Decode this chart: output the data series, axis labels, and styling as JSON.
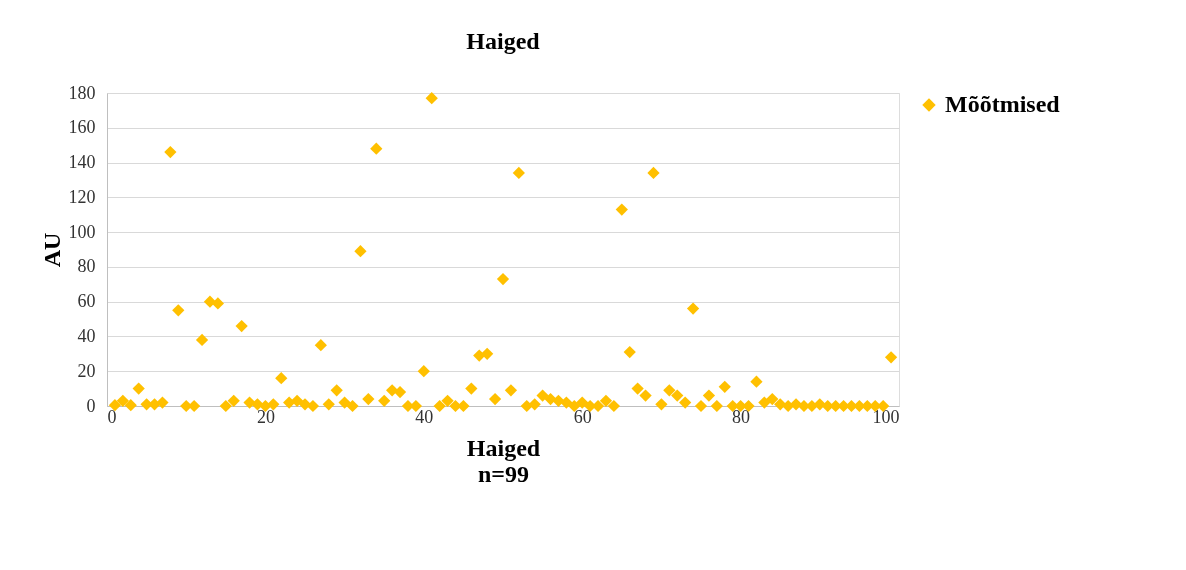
{
  "chart_data": {
    "type": "scatter",
    "title": "Haiged",
    "xlabel": "Haiged\nn=99",
    "ylabel": "AU",
    "x": [
      1,
      2,
      3,
      4,
      5,
      6,
      7,
      8,
      9,
      10,
      11,
      12,
      13,
      14,
      15,
      16,
      17,
      18,
      19,
      20,
      21,
      22,
      23,
      24,
      25,
      26,
      27,
      28,
      29,
      30,
      31,
      32,
      33,
      34,
      35,
      36,
      37,
      38,
      39,
      40,
      41,
      42,
      43,
      44,
      45,
      46,
      47,
      48,
      49,
      50,
      51,
      52,
      53,
      54,
      55,
      56,
      57,
      58,
      59,
      60,
      61,
      62,
      63,
      64,
      65,
      66,
      67,
      68,
      69,
      70,
      71,
      72,
      73,
      74,
      75,
      76,
      77,
      78,
      79,
      80,
      81,
      82,
      83,
      84,
      85,
      86,
      87,
      88,
      89,
      90,
      91,
      92,
      93,
      94,
      95,
      96,
      97,
      98,
      99
    ],
    "series": [
      {
        "name": "Mõõtmised",
        "color": "#ffc000",
        "values": [
          0.5,
          3,
          0.5,
          10,
          1,
          1,
          2,
          146,
          55,
          0,
          0,
          38,
          60,
          59,
          0,
          3,
          46,
          2,
          1,
          0,
          1,
          16,
          2,
          3,
          1,
          0,
          35,
          1,
          9,
          2,
          0,
          89,
          4,
          148,
          3,
          9,
          8,
          0,
          0,
          20,
          177,
          0,
          3,
          0,
          0,
          10,
          29,
          30,
          4,
          73,
          9,
          134,
          0,
          1,
          6,
          4,
          3,
          2,
          0,
          2,
          0,
          0,
          3,
          0,
          113,
          31,
          10,
          6,
          134,
          1,
          9,
          6,
          2,
          56,
          0,
          6,
          0,
          11,
          0,
          0,
          0,
          14,
          2,
          4,
          1,
          0,
          1,
          0,
          0,
          1,
          0,
          0,
          0,
          0,
          0,
          0,
          0,
          0,
          28
        ]
      }
    ],
    "xlim": [
      0,
      100
    ],
    "xticks": [
      0,
      20,
      40,
      60,
      80,
      100
    ],
    "ylim": [
      0,
      180
    ],
    "yticks": [
      0,
      20,
      40,
      60,
      80,
      100,
      120,
      140,
      160,
      180
    ],
    "grid": "y",
    "legend": "right",
    "marker": "diamond"
  }
}
